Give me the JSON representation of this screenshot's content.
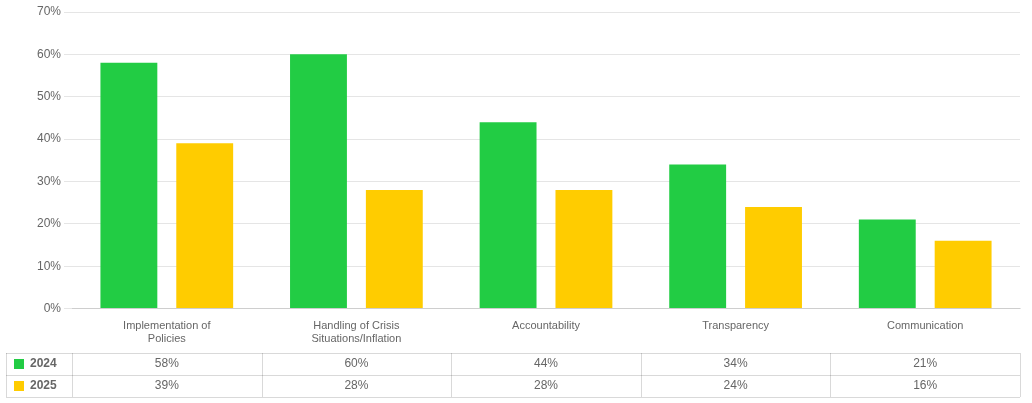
{
  "chart_data": {
    "type": "bar",
    "categories": [
      "Implementation of\nPolicies",
      "Handling of Crisis\nSituations/Inflation",
      "Accountability",
      "Transparency",
      "Communication"
    ],
    "series": [
      {
        "name": "2024",
        "color": "#22cc44",
        "values": [
          58,
          60,
          44,
          34,
          21
        ],
        "value_labels": [
          "58%",
          "60%",
          "44%",
          "34%",
          "21%"
        ]
      },
      {
        "name": "2025",
        "color": "#ffcc00",
        "values": [
          39,
          28,
          28,
          24,
          16
        ],
        "value_labels": [
          "39%",
          "28%",
          "28%",
          "24%",
          "16%"
        ]
      }
    ],
    "ylim": [
      0,
      70
    ],
    "yticks": [
      {
        "value": 0,
        "label": "0%"
      },
      {
        "value": 10,
        "label": "10%"
      },
      {
        "value": 20,
        "label": "20%"
      },
      {
        "value": 30,
        "label": "30%"
      },
      {
        "value": 40,
        "label": "40%"
      },
      {
        "value": 50,
        "label": "50%"
      },
      {
        "value": 60,
        "label": "60%"
      },
      {
        "value": 70,
        "label": "70%"
      }
    ],
    "grid": true,
    "data_labels": true
  }
}
